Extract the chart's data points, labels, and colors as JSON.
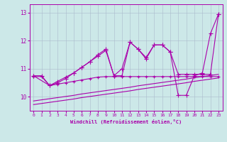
{
  "xlabel": "Windchill (Refroidissement éolien,°C)",
  "xlim": [
    -0.5,
    23.5
  ],
  "ylim": [
    9.5,
    13.3
  ],
  "yticks": [
    10,
    11,
    12,
    13
  ],
  "xticks": [
    0,
    1,
    2,
    3,
    4,
    5,
    6,
    7,
    8,
    9,
    10,
    11,
    12,
    13,
    14,
    15,
    16,
    17,
    18,
    19,
    20,
    21,
    22,
    23
  ],
  "bg_color": "#cce8e8",
  "line_color": "#aa00aa",
  "grid_color": "#aabbcc",
  "series": [
    {
      "x": [
        0,
        1,
        2,
        3,
        4,
        5,
        6,
        7,
        8,
        9,
        10,
        11,
        12,
        13,
        14,
        15,
        16,
        17,
        18,
        19,
        20,
        21,
        22,
        23
      ],
      "y": [
        10.75,
        10.75,
        10.4,
        10.5,
        10.65,
        10.85,
        11.05,
        11.25,
        11.45,
        11.65,
        10.75,
        11.0,
        11.95,
        11.7,
        11.4,
        11.85,
        11.85,
        11.6,
        10.8,
        10.8,
        10.8,
        10.8,
        10.8,
        12.95
      ],
      "marker": "+",
      "markersize": 4,
      "lw": 0.8
    },
    {
      "x": [
        0,
        2,
        3,
        4,
        5,
        6,
        7,
        8,
        9,
        10,
        11,
        12,
        13,
        14,
        15,
        16,
        17,
        18,
        19,
        20,
        21,
        22,
        23
      ],
      "y": [
        10.75,
        10.4,
        10.55,
        10.7,
        10.85,
        11.05,
        11.25,
        11.5,
        11.7,
        10.75,
        10.75,
        11.95,
        11.7,
        11.35,
        11.85,
        11.85,
        11.6,
        10.05,
        10.05,
        10.75,
        10.85,
        12.25,
        12.95
      ],
      "marker": "+",
      "markersize": 4,
      "lw": 0.8
    },
    {
      "x": [
        0,
        1,
        2,
        3,
        4,
        5,
        6,
        7,
        8,
        9,
        10,
        11,
        12,
        13,
        14,
        15,
        16,
        17,
        18,
        19,
        20,
        21,
        22,
        23
      ],
      "y": [
        10.72,
        10.72,
        10.4,
        10.45,
        10.5,
        10.55,
        10.6,
        10.65,
        10.7,
        10.72,
        10.72,
        10.72,
        10.72,
        10.72,
        10.72,
        10.72,
        10.72,
        10.72,
        10.72,
        10.72,
        10.72,
        10.72,
        10.72,
        10.72
      ],
      "marker": "+",
      "markersize": 3,
      "lw": 0.8
    },
    {
      "x": [
        0,
        1,
        2,
        3,
        4,
        5,
        6,
        7,
        8,
        9,
        10,
        11,
        12,
        13,
        14,
        15,
        16,
        17,
        18,
        19,
        20,
        21,
        22,
        23
      ],
      "y": [
        9.72,
        9.76,
        9.8,
        9.84,
        9.88,
        9.92,
        9.97,
        10.01,
        10.05,
        10.09,
        10.13,
        10.17,
        10.21,
        10.26,
        10.3,
        10.34,
        10.38,
        10.42,
        10.46,
        10.5,
        10.55,
        10.59,
        10.63,
        10.67
      ],
      "marker": null,
      "markersize": 0,
      "lw": 0.8
    },
    {
      "x": [
        0,
        1,
        2,
        3,
        4,
        5,
        6,
        7,
        8,
        9,
        10,
        11,
        12,
        13,
        14,
        15,
        16,
        17,
        18,
        19,
        20,
        21,
        22,
        23
      ],
      "y": [
        9.85,
        9.89,
        9.93,
        9.97,
        10.01,
        10.05,
        10.1,
        10.14,
        10.18,
        10.22,
        10.26,
        10.3,
        10.34,
        10.39,
        10.43,
        10.47,
        10.51,
        10.55,
        10.59,
        10.63,
        10.68,
        10.72,
        10.76,
        10.8
      ],
      "marker": null,
      "markersize": 0,
      "lw": 0.8
    }
  ]
}
